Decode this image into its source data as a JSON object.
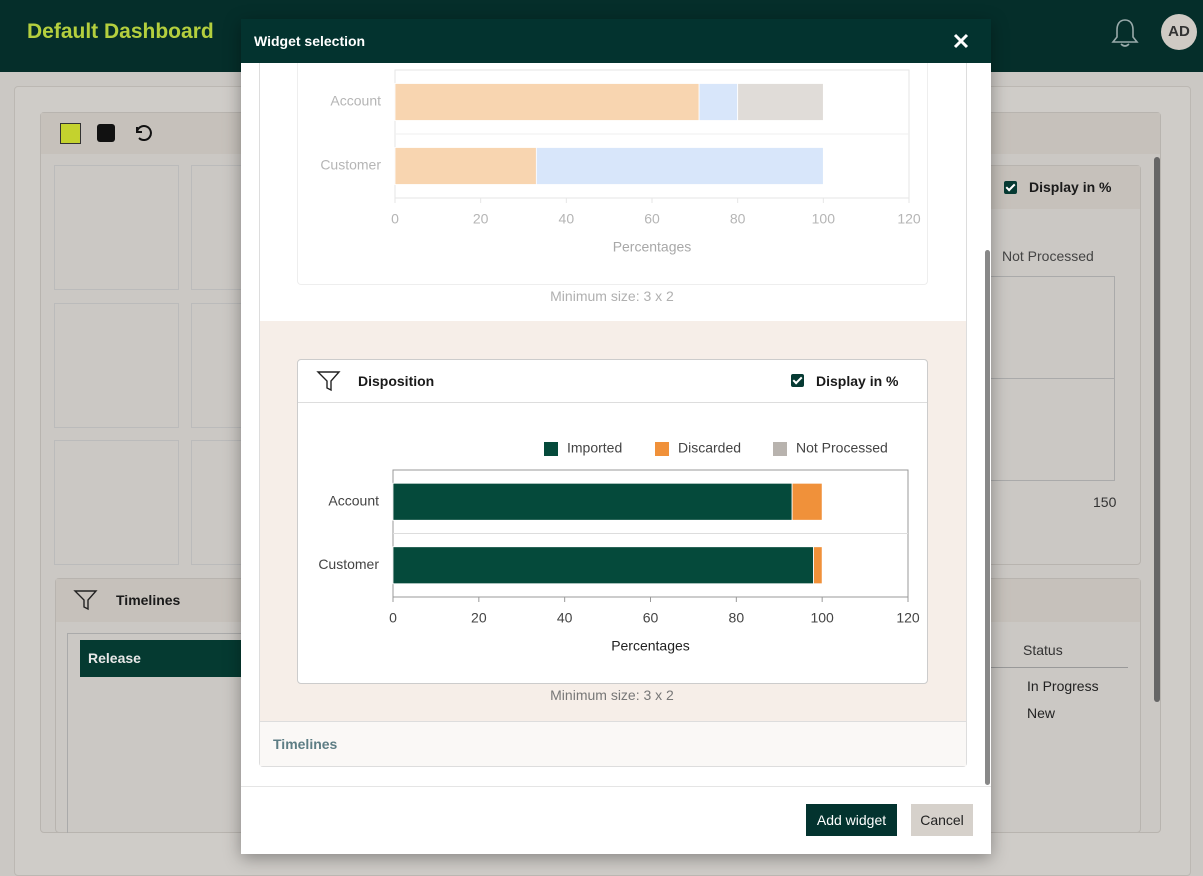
{
  "header": {
    "title": "Default Dashboard",
    "avatar": "AD"
  },
  "background": {
    "display_toggle": "Display in %",
    "legend_item": "Not Processed",
    "axis_tick": 150,
    "timelines_title": "Timelines",
    "release_label": "Release",
    "status_header": "Status",
    "statuses": [
      "In Progress",
      "New"
    ]
  },
  "modal": {
    "title": "Widget selection",
    "widgets": [
      {
        "chart": {
          "type": "bar",
          "orientation": "horizontal",
          "stacked": true,
          "categories": [
            "Account",
            "Customer"
          ],
          "series": [
            {
              "color": "#f8d5b0",
              "values": [
                71,
                33
              ]
            },
            {
              "color": "#d8e6fa",
              "values": [
                9,
                67
              ]
            },
            {
              "color": "#e0dcd8",
              "values": [
                20,
                0
              ]
            }
          ],
          "xlabel": "Percentages",
          "xlim": [
            0,
            120
          ],
          "xticks": [
            0,
            20,
            40,
            60,
            80,
            100,
            120
          ]
        },
        "min_size": "Minimum size: 3 x 2"
      },
      {
        "title": "Disposition",
        "display_toggle": "Display in %",
        "chart": {
          "type": "bar",
          "orientation": "horizontal",
          "stacked": true,
          "categories": [
            "Account",
            "Customer"
          ],
          "series": [
            {
              "name": "Imported",
              "color": "#054a3b",
              "values": [
                93,
                98
              ]
            },
            {
              "name": "Discarded",
              "color": "#f0913a",
              "values": [
                7,
                2
              ]
            },
            {
              "name": "Not Processed",
              "color": "#b8b3ae",
              "values": [
                0,
                0
              ]
            }
          ],
          "xlabel": "Percentages",
          "xlim": [
            0,
            120
          ],
          "xticks": [
            0,
            20,
            40,
            60,
            80,
            100,
            120
          ]
        },
        "min_size": "Minimum size: 3 x 2"
      },
      {
        "title": "Timelines"
      }
    ],
    "buttons": {
      "add": "Add widget",
      "cancel": "Cancel"
    }
  }
}
